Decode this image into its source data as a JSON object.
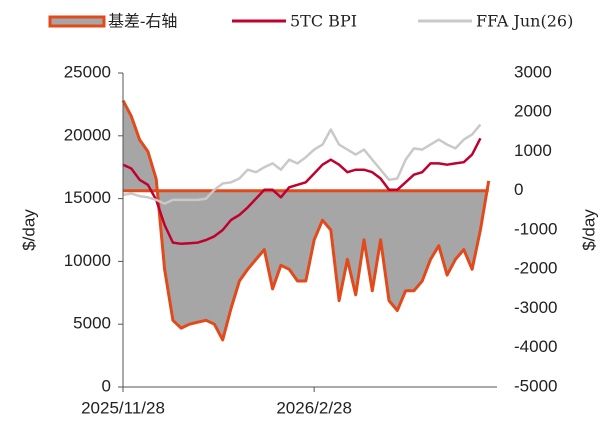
{
  "chart_data": {
    "type": "line",
    "categories": [
      "2025/11/28",
      null,
      null,
      null,
      null,
      null,
      null,
      null,
      null,
      null,
      null,
      null,
      null,
      null,
      null,
      null,
      null,
      null,
      null,
      null,
      null,
      null,
      null,
      "2026/2/28",
      null,
      null,
      null,
      null,
      null,
      null,
      null,
      null,
      null,
      null,
      null,
      null,
      null,
      null,
      null,
      null,
      null,
      null,
      null,
      null,
      null
    ],
    "series": [
      {
        "name": "基差-右轴",
        "color": "#e2491b",
        "fill": "#a6a6a6",
        "area": true,
        "axis": "y2",
        "values": [
          2300,
          1900,
          1300,
          1000,
          300,
          -2000,
          -3300,
          -3500,
          -3400,
          -3350,
          -3300,
          -3400,
          -3800,
          -3000,
          -2300,
          -2000,
          -1750,
          -1500,
          -2500,
          -1900,
          -2000,
          -2300,
          -2300,
          -1250,
          -750,
          -1000,
          -2800,
          -1750,
          -2650,
          -1250,
          -2550,
          -1250,
          -2800,
          -3050,
          -2550,
          -2550,
          -2300,
          -1750,
          -1400,
          -2150,
          -1750,
          -1500,
          -2000,
          -1000,
          250
        ]
      },
      {
        "name": "5TC BPI",
        "color": "#c0002f",
        "values": [
          17700,
          17400,
          16500,
          16100,
          14900,
          12900,
          11500,
          11400,
          11450,
          11500,
          11700,
          12000,
          12500,
          13300,
          13700,
          14300,
          15000,
          15700,
          15700,
          15100,
          15900,
          16100,
          16300,
          17000,
          17700,
          18100,
          17700,
          17100,
          17300,
          17300,
          17100,
          16600,
          15700,
          15700,
          16300,
          16900,
          17100,
          17800,
          17800,
          17700,
          17800,
          17900,
          18500,
          19800,
          null
        ]
      },
      {
        "name": "FFA Jun(26)",
        "color": "#c9c9c9",
        "values": [
          15300,
          15400,
          15200,
          15100,
          14900,
          14600,
          14900,
          14900,
          14900,
          14900,
          15000,
          15700,
          16200,
          16300,
          16600,
          17300,
          17100,
          17500,
          17800,
          17300,
          18100,
          17800,
          18300,
          18900,
          19300,
          20500,
          19300,
          18900,
          18500,
          18900,
          18100,
          17300,
          16500,
          16600,
          18100,
          19000,
          18900,
          19300,
          19700,
          19300,
          19000,
          19700,
          20100,
          20900,
          null
        ]
      }
    ],
    "ylabel": "$/day",
    "y2label": "$/day",
    "ylim": [
      0,
      25000
    ],
    "yticks": [
      0,
      5000,
      10000,
      15000,
      20000,
      25000
    ],
    "y2lim": [
      -5000,
      3000
    ],
    "y2ticks": [
      -5000,
      -4000,
      -3000,
      -2000,
      -1000,
      0,
      1000,
      2000,
      3000
    ]
  }
}
